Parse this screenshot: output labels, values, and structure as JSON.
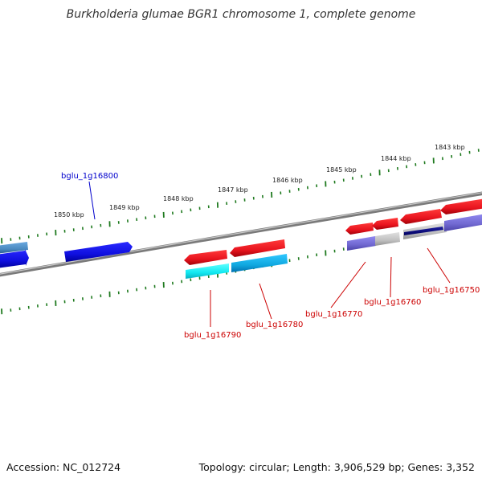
{
  "title": "Burkholderia glumae BGR1 chromosome 1, complete genome",
  "footer": {
    "accession": "Accession: NC_012724",
    "summary": "Topology: circular; Length: 3,906,529 bp; Genes: 3,352"
  },
  "ruler_labels": [
    "1850 kbp",
    "1849 kbp",
    "1848 kbp",
    "1847 kbp",
    "1846 kbp",
    "1845 kbp",
    "1844 kbp",
    "1843 kbp"
  ],
  "gene_labels": [
    {
      "name": "bglu_1g16800",
      "color": "#0000cc"
    },
    {
      "name": "bglu_1g16790",
      "color": "#cc0000"
    },
    {
      "name": "bglu_1g16780",
      "color": "#cc0000"
    },
    {
      "name": "bglu_1g16770",
      "color": "#cc0000"
    },
    {
      "name": "bglu_1g16760",
      "color": "#cc0000"
    },
    {
      "name": "bglu_1g16750",
      "color": "#cc0000"
    }
  ],
  "colors": {
    "backbone": "#808080",
    "ticks": "#1f7a1f",
    "gene_red": "#e8141e",
    "gene_blue": "#1010e0",
    "gene_cyan": "#10e8f0",
    "gene_teal": "#10a8e0",
    "gene_purple": "#7068d0",
    "gene_gray": "#c0c0c0",
    "gene_steel": "#4a8ac0"
  }
}
